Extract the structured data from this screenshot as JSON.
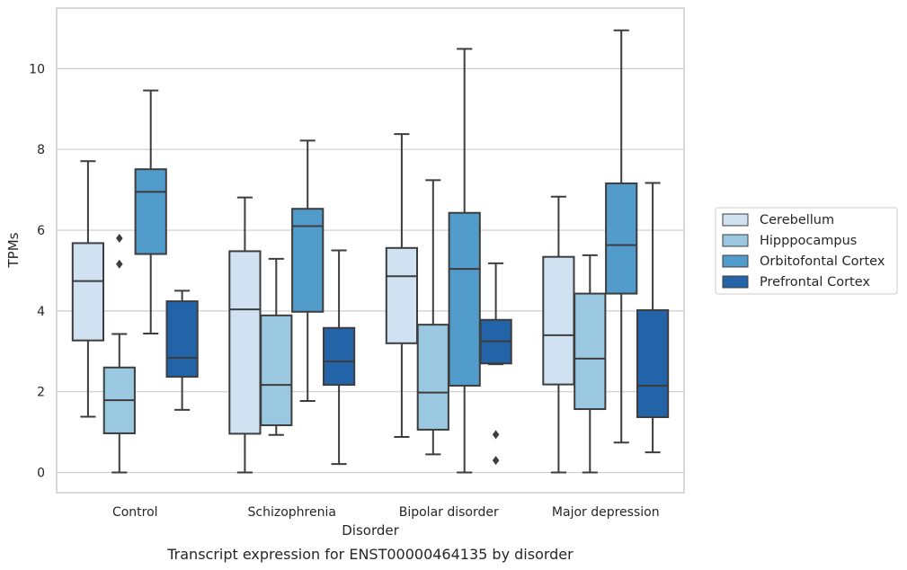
{
  "caption": "Transcript expression for ENST00000464135 by disorder",
  "chart_data": {
    "type": "box",
    "title": "",
    "xlabel": "Disorder",
    "ylabel": "TPMs",
    "ylim": [
      -0.5,
      11.5
    ],
    "yticks": [
      0,
      2,
      4,
      6,
      8,
      10
    ],
    "grid": "horizontal",
    "legend_position": "right",
    "categories": [
      "Control",
      "Schizophrenia",
      "Bipolar disorder",
      "Major depression"
    ],
    "series": [
      {
        "name": "Cerebellum",
        "color": "#d0e1f2",
        "boxes": [
          {
            "whislo": 1.38,
            "q1": 3.27,
            "med": 4.74,
            "q3": 5.68,
            "whishi": 7.71,
            "fliers": []
          },
          {
            "whislo": 0.0,
            "q1": 0.96,
            "med": 4.04,
            "q3": 5.48,
            "whishi": 6.81,
            "fliers": []
          },
          {
            "whislo": 0.88,
            "q1": 3.2,
            "med": 4.86,
            "q3": 5.56,
            "whishi": 8.38,
            "fliers": []
          },
          {
            "whislo": 0.0,
            "q1": 2.18,
            "med": 3.4,
            "q3": 5.34,
            "whishi": 6.83,
            "fliers": []
          }
        ]
      },
      {
        "name": "Hipppocampus",
        "color": "#9ac8e0",
        "boxes": [
          {
            "whislo": 0.0,
            "q1": 0.97,
            "med": 1.79,
            "q3": 2.6,
            "whishi": 3.43,
            "fliers": [
              5.16,
              5.8
            ]
          },
          {
            "whislo": 0.93,
            "q1": 1.17,
            "med": 2.17,
            "q3": 3.89,
            "whishi": 5.29,
            "fliers": []
          },
          {
            "whislo": 0.45,
            "q1": 1.06,
            "med": 1.98,
            "q3": 3.66,
            "whishi": 7.24,
            "fliers": []
          },
          {
            "whislo": 0.0,
            "q1": 1.57,
            "med": 2.82,
            "q3": 4.43,
            "whishi": 5.38,
            "fliers": []
          }
        ]
      },
      {
        "name": "Orbitofontal Cortex",
        "color": "#519cca",
        "boxes": [
          {
            "whislo": 3.44,
            "q1": 5.41,
            "med": 6.95,
            "q3": 7.51,
            "whishi": 9.46,
            "fliers": []
          },
          {
            "whislo": 1.77,
            "q1": 3.98,
            "med": 6.1,
            "q3": 6.53,
            "whishi": 8.22,
            "fliers": []
          },
          {
            "whislo": 0.0,
            "q1": 2.15,
            "med": 5.04,
            "q3": 6.43,
            "whishi": 10.49,
            "fliers": []
          },
          {
            "whislo": 0.74,
            "q1": 4.43,
            "med": 5.63,
            "q3": 7.16,
            "whishi": 10.95,
            "fliers": []
          }
        ]
      },
      {
        "name": "Prefrontal Cortex",
        "color": "#2363a8",
        "boxes": [
          {
            "whislo": 1.55,
            "q1": 2.37,
            "med": 2.84,
            "q3": 4.24,
            "whishi": 4.5,
            "fliers": []
          },
          {
            "whislo": 0.21,
            "q1": 2.17,
            "med": 2.75,
            "q3": 3.58,
            "whishi": 5.5,
            "fliers": []
          },
          {
            "whislo": 2.68,
            "q1": 2.7,
            "med": 3.25,
            "q3": 3.78,
            "whishi": 5.18,
            "fliers": [
              0.3,
              0.94
            ]
          },
          {
            "whislo": 0.5,
            "q1": 1.37,
            "med": 2.15,
            "q3": 4.02,
            "whishi": 7.17,
            "fliers": []
          }
        ]
      }
    ]
  }
}
